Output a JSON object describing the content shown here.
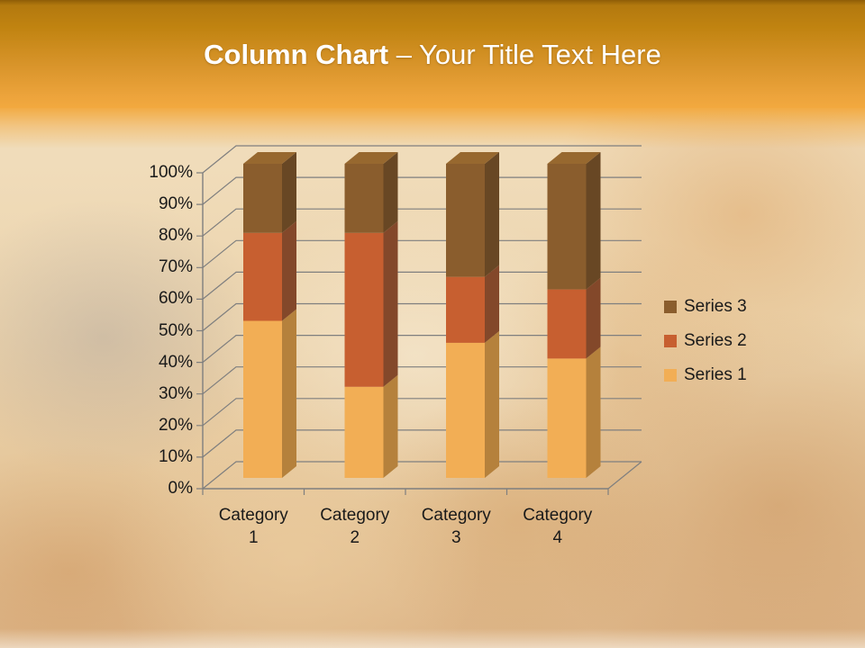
{
  "slide": {
    "title": {
      "bold": "Column Chart",
      "regular": "– Your Title Text Here"
    }
  },
  "header": {
    "gradient_top": "#b3790f",
    "gradient_bottom": "#f2a93f",
    "text_color": "#ffffff"
  },
  "chart_data": {
    "type": "bar",
    "subtype": "3d-100-percent-stacked-column",
    "title": "",
    "xlabel": "",
    "ylabel": "",
    "categories": [
      "Category 1",
      "Category 2",
      "Category 3",
      "Category 4"
    ],
    "series": [
      {
        "name": "Series 1",
        "values": [
          50,
          29,
          43,
          38
        ],
        "color": "#F2AE55",
        "side_color": "#B5813C",
        "top_color": "#F6C477"
      },
      {
        "name": "Series 2",
        "values": [
          28,
          49,
          21,
          22
        ],
        "color": "#C75F30",
        "side_color": "#83482A",
        "top_color": "#D4713C"
      },
      {
        "name": "Series 3",
        "values": [
          22,
          22,
          36,
          40
        ],
        "color": "#8A5D2D",
        "side_color": "#684724",
        "top_color": "#97682F"
      }
    ],
    "ylim": [
      0,
      100
    ],
    "ylabel_ticks": [
      "0%",
      "10%",
      "20%",
      "30%",
      "40%",
      "50%",
      "60%",
      "70%",
      "80%",
      "90%",
      "100%"
    ],
    "grid": true,
    "gridline_color": "#7f7f7f",
    "axis_color": "#7f7f7f",
    "axis_text_color": "#1a1a1a",
    "legend": {
      "position": "right",
      "entries": [
        "Series 3",
        "Series 2",
        "Series 1"
      ]
    }
  }
}
